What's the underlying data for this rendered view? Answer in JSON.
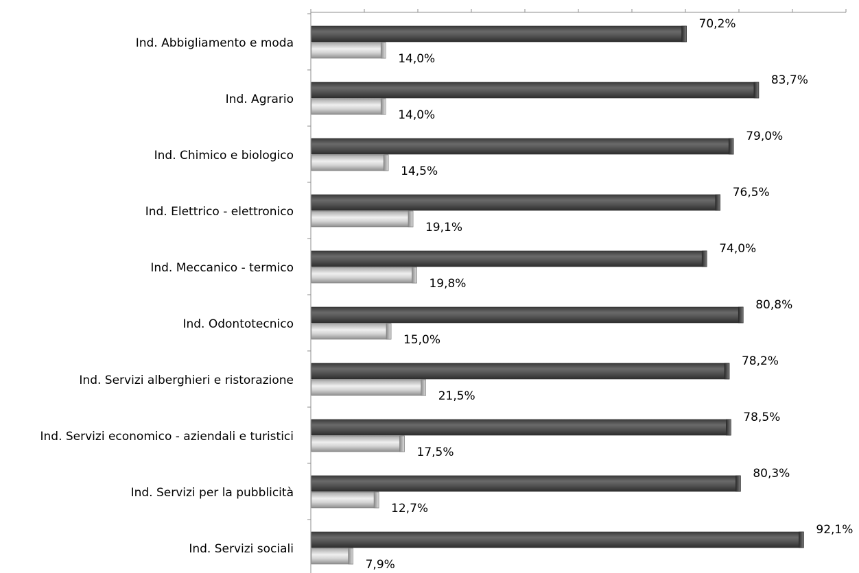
{
  "chart_data": {
    "type": "bar",
    "orientation": "horizontal",
    "categories": [
      "Ind. Abbigliamento e moda",
      "Ind. Agrario",
      "Ind. Chimico e biologico",
      "Ind. Elettrico - elettronico",
      "Ind. Meccanico - termico",
      "Ind. Odontotecnico",
      "Ind. Servizi alberghieri e ristorazione",
      "Ind. Servizi economico - aziendali e turistici",
      "Ind. Servizi per la pubblicità",
      "Ind. Servizi sociali"
    ],
    "series": [
      {
        "values": [
          70.2,
          83.7,
          79.0,
          76.5,
          74.0,
          80.8,
          78.2,
          78.5,
          80.3,
          92.1
        ],
        "labels": [
          "70,2%",
          "83,7%",
          "79,0%",
          "76,5%",
          "74,0%",
          "80,8%",
          "78,2%",
          "78,5%",
          "80,3%",
          "92,1%"
        ],
        "color": "#555555"
      },
      {
        "values": [
          14.0,
          14.0,
          14.5,
          19.1,
          19.8,
          15.0,
          21.5,
          17.5,
          12.7,
          7.9
        ],
        "labels": [
          "14,0%",
          "14,0%",
          "14,5%",
          "19,1%",
          "19,8%",
          "15,0%",
          "21,5%",
          "17,5%",
          "12,7%",
          "7,9%"
        ],
        "color": "#c4c4c4"
      }
    ],
    "xlim": [
      0,
      100
    ],
    "axis_position": "top",
    "tick_labels_shown": false,
    "grid": false,
    "legend": "none",
    "title": "",
    "xlabel": "",
    "ylabel": ""
  }
}
